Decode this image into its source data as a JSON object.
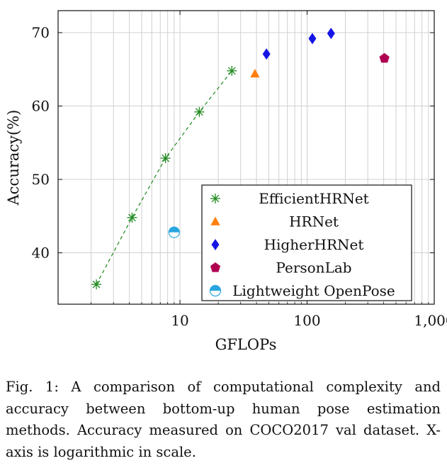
{
  "chart_data": {
    "type": "scatter",
    "xlabel": "GFLOPs",
    "ylabel": "Accuracy(%)",
    "xscale": "log",
    "xlim": [
      1.1,
      1000
    ],
    "ylim": [
      33,
      73
    ],
    "xticks": [
      10,
      100,
      1000
    ],
    "xtick_labels": [
      "10",
      "100",
      "1,000"
    ],
    "yticks": [
      40,
      50,
      60,
      70
    ],
    "ytick_labels": [
      "40",
      "50",
      "60",
      "70"
    ],
    "grid": true,
    "legend_position": "bottom-right",
    "series": [
      {
        "name": "EfficientHRNet",
        "marker": "asterisk",
        "color": "#1f8a1f",
        "line": "dashed",
        "points": [
          {
            "x": 2.2,
            "y": 35.7
          },
          {
            "x": 4.2,
            "y": 44.8
          },
          {
            "x": 7.7,
            "y": 52.9
          },
          {
            "x": 14.2,
            "y": 59.2
          },
          {
            "x": 25.6,
            "y": 64.8
          }
        ]
      },
      {
        "name": "HRNet",
        "marker": "triangle",
        "color": "#ff7f0e",
        "line": "none",
        "points": [
          {
            "x": 38.9,
            "y": 64.4
          }
        ]
      },
      {
        "name": "HigherHRNet",
        "marker": "diamond",
        "color": "#1414e6",
        "line": "none",
        "points": [
          {
            "x": 47.9,
            "y": 67.1
          },
          {
            "x": 110.0,
            "y": 69.2
          },
          {
            "x": 154.3,
            "y": 69.9
          }
        ]
      },
      {
        "name": "PersonLab",
        "marker": "pentagon",
        "color": "#b00050",
        "line": "none",
        "points": [
          {
            "x": 405.5,
            "y": 66.5
          }
        ]
      },
      {
        "name": "Lightweight OpenPose",
        "marker": "half-circle",
        "color": "#29a6e0",
        "line": "none",
        "points": [
          {
            "x": 9.0,
            "y": 42.8
          }
        ]
      }
    ]
  },
  "caption": "Fig. 1: A comparison of computational complexity and accuracy between bottom-up human pose estimation methods. Accuracy measured on COCO2017 val dataset. X-axis is logarithmic in scale."
}
